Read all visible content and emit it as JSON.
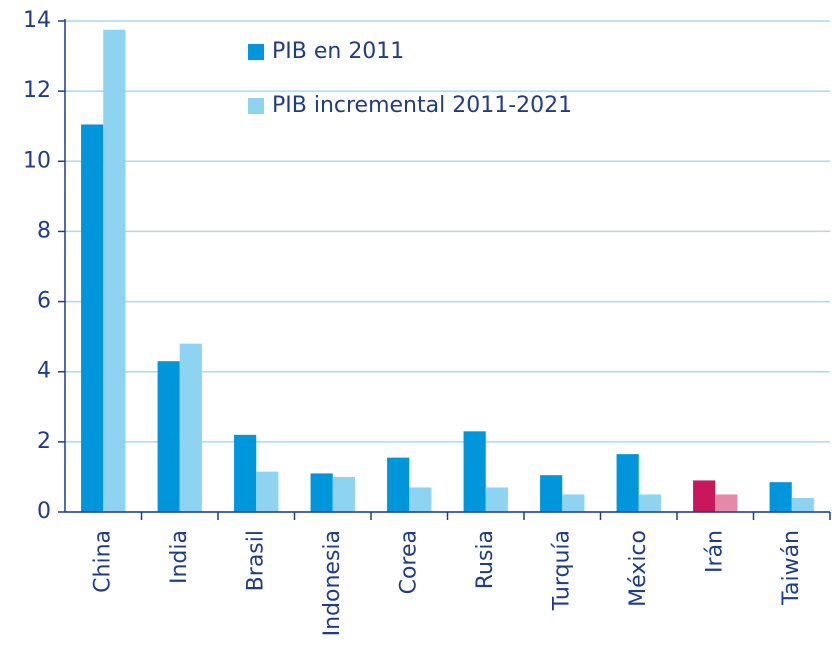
{
  "chart_data": {
    "type": "bar",
    "categories": [
      "China",
      "India",
      "Brasil",
      "Indonesia",
      "Corea",
      "Rusia",
      "Turquía",
      "México",
      "Irán",
      "Taiwán"
    ],
    "series": [
      {
        "name": "PIB en 2011",
        "color": "#0096dc",
        "colors": [
          "#0096dc",
          "#0096dc",
          "#0096dc",
          "#0096dc",
          "#0096dc",
          "#0096dc",
          "#0096dc",
          "#0096dc",
          "#c8175d",
          "#0096dc"
        ],
        "values": [
          11.05,
          4.3,
          2.2,
          1.1,
          1.55,
          2.3,
          1.05,
          1.65,
          0.9,
          0.85
        ]
      },
      {
        "name": "PIB incremental 2011-2021",
        "color": "#8ed3f0",
        "colors": [
          "#8ed3f0",
          "#8ed3f0",
          "#8ed3f0",
          "#8ed3f0",
          "#8ed3f0",
          "#8ed3f0",
          "#8ed3f0",
          "#8ed3f0",
          "#e48aa8",
          "#8ed3f0"
        ],
        "values": [
          13.75,
          4.8,
          1.15,
          1.0,
          0.7,
          0.7,
          0.5,
          0.5,
          0.5,
          0.4
        ]
      }
    ],
    "ylim": [
      0,
      14
    ],
    "yticks": [
      0,
      2,
      4,
      6,
      8,
      10,
      12,
      14
    ],
    "grid": true,
    "legend": "top"
  }
}
